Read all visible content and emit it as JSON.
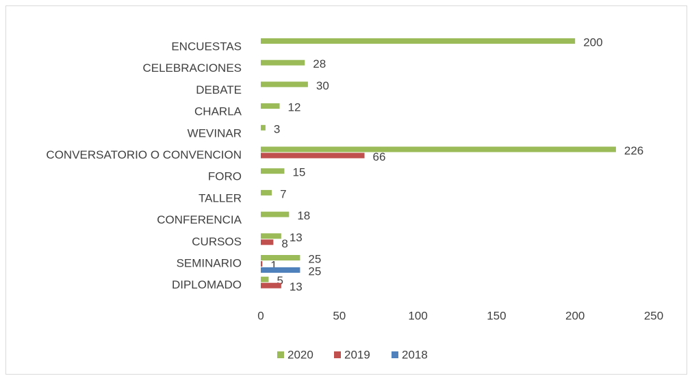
{
  "chart_data": {
    "type": "bar",
    "orientation": "horizontal",
    "categories": [
      "ENCUESTAS",
      "CELEBRACIONES",
      "DEBATE",
      "CHARLA",
      "WEVINAR",
      "CONVERSATORIO O CONVENCION",
      "FORO",
      "TALLER",
      "CONFERENCIA",
      "CURSOS",
      "SEMINARIO",
      "DIPLOMADO"
    ],
    "series": [
      {
        "name": "2020",
        "color": "#9bbb59",
        "values": [
          200,
          28,
          30,
          12,
          3,
          226,
          15,
          7,
          18,
          13,
          25,
          5
        ]
      },
      {
        "name": "2019",
        "color": "#c0504d",
        "values": [
          null,
          null,
          null,
          null,
          null,
          66,
          null,
          null,
          null,
          8,
          1,
          13
        ]
      },
      {
        "name": "2018",
        "color": "#4f81bd",
        "values": [
          null,
          null,
          null,
          null,
          null,
          null,
          null,
          null,
          null,
          null,
          25,
          null
        ]
      }
    ],
    "xlim": [
      0,
      250
    ],
    "xticks": [
      0,
      50,
      100,
      150,
      200,
      250
    ],
    "legend": "bottom"
  }
}
